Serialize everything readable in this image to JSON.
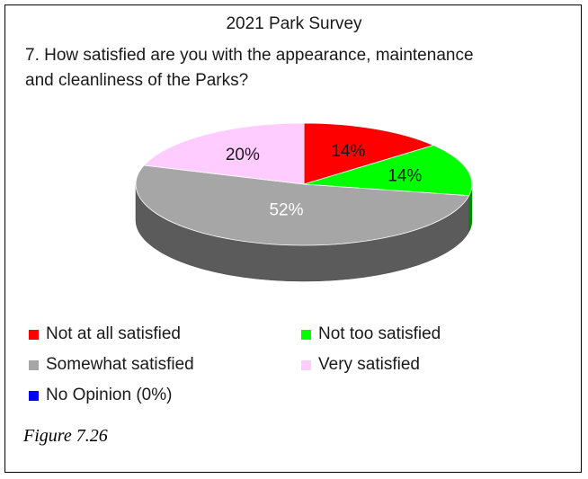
{
  "chart_data": {
    "type": "pie",
    "title": "2021 Park Survey",
    "subtitle": "7. How satisfied are you with the appearance, maintenance and cleanliness of the Parks?",
    "slices": [
      {
        "name": "Not at all satisfied",
        "value": 14,
        "label": "14%",
        "color": "#ff0000"
      },
      {
        "name": "Not too satisfied",
        "value": 14,
        "label": "14%",
        "color": "#00ff00"
      },
      {
        "name": "Somewhat satisfied",
        "value": 52,
        "label": "52%",
        "color": "#a6a6a6"
      },
      {
        "name": "Very satisfied",
        "value": 20,
        "label": "20%",
        "color": "#ffccff"
      },
      {
        "name": "No Opinion (0%)",
        "value": 0,
        "label": "",
        "color": "#0000ff"
      }
    ],
    "legend_placement": "bottom"
  },
  "header": {
    "title": "2021 Park Survey",
    "question_line1": "7. How satisfied are you with the appearance, maintenance",
    "question_line2": "and cleanliness of the Parks?"
  },
  "legend": {
    "items": [
      {
        "label": "Not at all satisfied",
        "color": "#ff0000"
      },
      {
        "label": "Not too satisfied",
        "color": "#00ff00"
      },
      {
        "label": "Somewhat satisfied",
        "color": "#a6a6a6"
      },
      {
        "label": "Very satisfied",
        "color": "#ffccff"
      },
      {
        "label": "No Opinion (0%)",
        "color": "#0000ff"
      }
    ]
  },
  "caption": "Figure 7.26"
}
